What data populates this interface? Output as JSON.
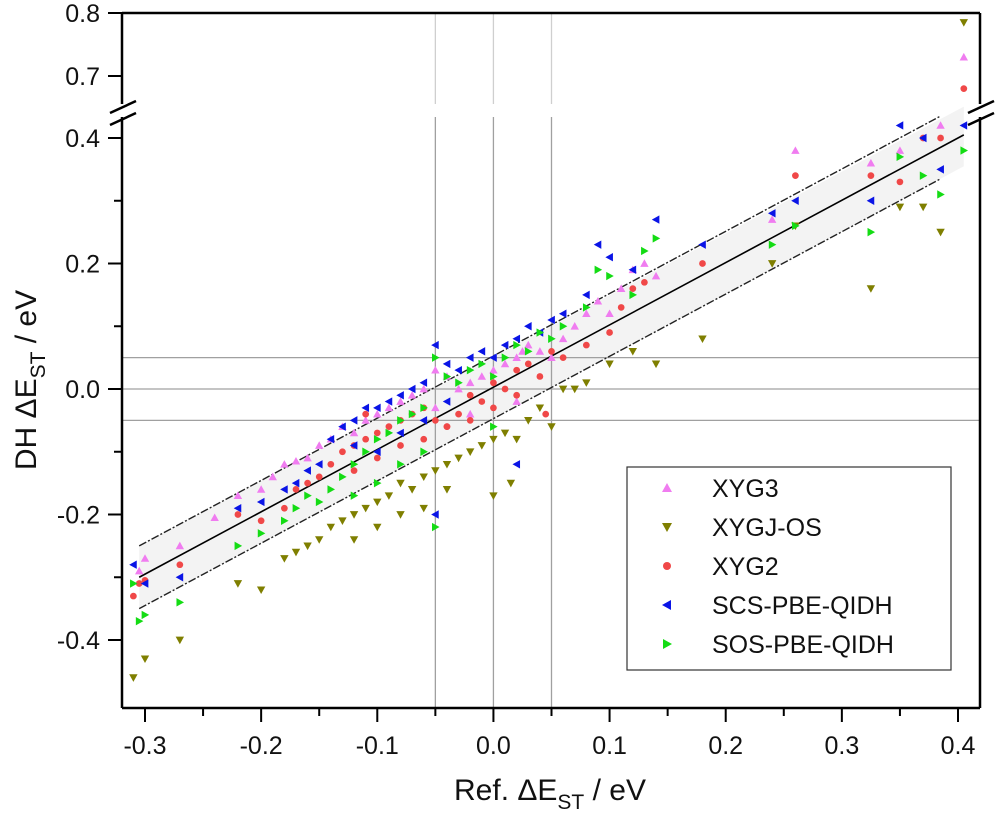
{
  "chart_data": {
    "type": "scatter",
    "title": "",
    "xlabel": {
      "main": "Ref. ΔE",
      "sub": "ST",
      "unit": " / eV"
    },
    "ylabel": {
      "main": "DH ΔE",
      "sub": "ST",
      "unit": " / eV"
    },
    "xlim": [
      -0.323,
      0.415
    ],
    "ylim_lower": [
      -0.475,
      0.44
    ],
    "ylim_upper": [
      0.685,
      0.8
    ],
    "axis_break": {
      "below": 0.44,
      "above": 0.685
    },
    "xticks": [
      -0.3,
      -0.2,
      -0.1,
      0.0,
      0.1,
      0.2,
      0.3,
      0.4
    ],
    "xtick_labels": [
      "-0.3",
      "-0.2",
      "-0.1",
      "0.0",
      "0.1",
      "0.2",
      "0.3",
      "0.4"
    ],
    "yticks": [
      -0.4,
      -0.2,
      0.0,
      0.2,
      0.4,
      0.7,
      0.8
    ],
    "ytick_labels": [
      "-0.4",
      "-0.2",
      "0.0",
      "0.2",
      "0.4",
      "0.7",
      "0.8"
    ],
    "ref_lines": {
      "vertical": [
        -0.05,
        0.0,
        0.05
      ],
      "horizontal": [
        -0.05,
        0.0,
        0.05
      ]
    },
    "fit_line": {
      "x": [
        -0.305,
        0.405
      ],
      "y": [
        -0.3,
        0.405
      ]
    },
    "band_offset": 0.05,
    "legend_position": "lower-right",
    "series": [
      {
        "name": "XYG3",
        "marker": "triangle-up",
        "color": "#f07cf0",
        "points": [
          [
            -0.305,
            -0.29
          ],
          [
            -0.3,
            -0.27
          ],
          [
            -0.27,
            -0.25
          ],
          [
            -0.24,
            -0.205
          ],
          [
            -0.22,
            -0.17
          ],
          [
            -0.2,
            -0.16
          ],
          [
            -0.19,
            -0.14
          ],
          [
            -0.18,
            -0.12
          ],
          [
            -0.17,
            -0.115
          ],
          [
            -0.16,
            -0.11
          ],
          [
            -0.15,
            -0.09
          ],
          [
            -0.14,
            -0.08
          ],
          [
            -0.13,
            -0.06
          ],
          [
            -0.12,
            -0.07
          ],
          [
            -0.11,
            -0.05
          ],
          [
            -0.1,
            -0.04
          ],
          [
            -0.09,
            -0.03
          ],
          [
            -0.08,
            -0.02
          ],
          [
            -0.07,
            -0.01
          ],
          [
            -0.06,
            0.0
          ],
          [
            -0.05,
            0.03
          ],
          [
            -0.04,
            0.02
          ],
          [
            -0.03,
            0.0
          ],
          [
            -0.02,
            0.01
          ],
          [
            -0.01,
            0.02
          ],
          [
            0.0,
            0.03
          ],
          [
            0.01,
            0.04
          ],
          [
            0.02,
            0.05
          ],
          [
            0.025,
            0.06
          ],
          [
            0.03,
            0.07
          ],
          [
            0.04,
            0.06
          ],
          [
            0.05,
            0.05
          ],
          [
            0.06,
            0.08
          ],
          [
            0.07,
            0.1
          ],
          [
            0.08,
            0.12
          ],
          [
            0.09,
            0.14
          ],
          [
            0.1,
            0.12
          ],
          [
            0.11,
            0.16
          ],
          [
            0.12,
            0.19
          ],
          [
            0.13,
            0.2
          ],
          [
            0.14,
            0.18
          ],
          [
            0.24,
            0.27
          ],
          [
            0.26,
            0.38
          ],
          [
            0.325,
            0.36
          ],
          [
            0.35,
            0.38
          ],
          [
            0.385,
            0.42
          ],
          [
            0.405,
            0.73
          ],
          [
            -0.05,
            -0.03
          ],
          [
            -0.02,
            -0.04
          ],
          [
            0.02,
            -0.02
          ]
        ]
      },
      {
        "name": "XYGJ-OS",
        "marker": "triangle-down",
        "color": "#7f7f00",
        "points": [
          [
            -0.31,
            -0.46
          ],
          [
            -0.3,
            -0.43
          ],
          [
            -0.27,
            -0.4
          ],
          [
            -0.22,
            -0.31
          ],
          [
            -0.2,
            -0.32
          ],
          [
            -0.18,
            -0.27
          ],
          [
            -0.17,
            -0.26
          ],
          [
            -0.16,
            -0.25
          ],
          [
            -0.15,
            -0.24
          ],
          [
            -0.14,
            -0.22
          ],
          [
            -0.13,
            -0.21
          ],
          [
            -0.12,
            -0.2
          ],
          [
            -0.11,
            -0.19
          ],
          [
            -0.1,
            -0.18
          ],
          [
            -0.09,
            -0.17
          ],
          [
            -0.08,
            -0.15
          ],
          [
            -0.07,
            -0.16
          ],
          [
            -0.06,
            -0.14
          ],
          [
            -0.05,
            -0.13
          ],
          [
            -0.04,
            -0.12
          ],
          [
            -0.03,
            -0.11
          ],
          [
            -0.02,
            -0.1
          ],
          [
            -0.01,
            -0.09
          ],
          [
            0.0,
            -0.08
          ],
          [
            0.01,
            -0.07
          ],
          [
            0.02,
            -0.08
          ],
          [
            0.03,
            -0.05
          ],
          [
            0.04,
            -0.03
          ],
          [
            0.05,
            -0.06
          ],
          [
            0.06,
            0.0
          ],
          [
            0.07,
            0.0
          ],
          [
            0.08,
            0.01
          ],
          [
            0.1,
            0.04
          ],
          [
            0.12,
            0.06
          ],
          [
            0.14,
            0.04
          ],
          [
            0.18,
            0.08
          ],
          [
            0.24,
            0.2
          ],
          [
            0.26,
            0.26
          ],
          [
            0.325,
            0.16
          ],
          [
            0.35,
            0.29
          ],
          [
            0.37,
            0.29
          ],
          [
            0.385,
            0.25
          ],
          [
            0.405,
            0.785
          ],
          [
            -0.12,
            -0.24
          ],
          [
            -0.1,
            -0.22
          ],
          [
            -0.08,
            -0.2
          ],
          [
            -0.06,
            -0.19
          ],
          [
            -0.04,
            -0.16
          ],
          [
            0.0,
            -0.17
          ],
          [
            0.015,
            -0.15
          ]
        ]
      },
      {
        "name": "XYG2",
        "marker": "circle",
        "color": "#f04848",
        "points": [
          [
            -0.31,
            -0.33
          ],
          [
            -0.305,
            -0.31
          ],
          [
            -0.3,
            -0.305
          ],
          [
            -0.27,
            -0.28
          ],
          [
            -0.22,
            -0.2
          ],
          [
            -0.2,
            -0.21
          ],
          [
            -0.18,
            -0.19
          ],
          [
            -0.17,
            -0.16
          ],
          [
            -0.16,
            -0.15
          ],
          [
            -0.15,
            -0.14
          ],
          [
            -0.14,
            -0.12
          ],
          [
            -0.13,
            -0.1
          ],
          [
            -0.12,
            -0.09
          ],
          [
            -0.11,
            -0.08
          ],
          [
            -0.1,
            -0.07
          ],
          [
            -0.09,
            -0.06
          ],
          [
            -0.08,
            -0.05
          ],
          [
            -0.07,
            -0.04
          ],
          [
            -0.06,
            -0.03
          ],
          [
            -0.05,
            -0.05
          ],
          [
            -0.04,
            -0.06
          ],
          [
            -0.03,
            -0.04
          ],
          [
            -0.02,
            -0.01
          ],
          [
            -0.01,
            -0.02
          ],
          [
            0.0,
            0.01
          ],
          [
            0.01,
            0.0
          ],
          [
            0.02,
            0.03
          ],
          [
            0.03,
            0.04
          ],
          [
            0.04,
            0.02
          ],
          [
            0.05,
            0.06
          ],
          [
            0.06,
            0.05
          ],
          [
            0.08,
            0.07
          ],
          [
            0.1,
            0.09
          ],
          [
            0.11,
            0.13
          ],
          [
            0.12,
            0.16
          ],
          [
            0.13,
            0.17
          ],
          [
            0.18,
            0.2
          ],
          [
            0.26,
            0.34
          ],
          [
            0.325,
            0.34
          ],
          [
            0.35,
            0.33
          ],
          [
            0.37,
            0.4
          ],
          [
            0.385,
            0.4
          ],
          [
            0.405,
            0.68
          ],
          [
            -0.12,
            -0.13
          ],
          [
            -0.1,
            -0.11
          ],
          [
            -0.08,
            -0.09
          ],
          [
            -0.06,
            -0.08
          ],
          [
            -0.04,
            -0.06
          ],
          [
            -0.02,
            -0.05
          ],
          [
            0.0,
            -0.03
          ],
          [
            0.02,
            -0.01
          ],
          [
            0.045,
            -0.04
          ],
          [
            -0.11,
            -0.04
          ]
        ]
      },
      {
        "name": "SCS-PBE-QIDH",
        "marker": "triangle-left",
        "color": "#0a14e6",
        "points": [
          [
            -0.31,
            -0.28
          ],
          [
            -0.3,
            -0.31
          ],
          [
            -0.27,
            -0.3
          ],
          [
            -0.22,
            -0.19
          ],
          [
            -0.2,
            -0.18
          ],
          [
            -0.18,
            -0.16
          ],
          [
            -0.17,
            -0.15
          ],
          [
            -0.16,
            -0.13
          ],
          [
            -0.15,
            -0.12
          ],
          [
            -0.14,
            -0.08
          ],
          [
            -0.13,
            -0.06
          ],
          [
            -0.12,
            -0.05
          ],
          [
            -0.11,
            -0.03
          ],
          [
            -0.1,
            -0.03
          ],
          [
            -0.09,
            -0.02
          ],
          [
            -0.08,
            -0.01
          ],
          [
            -0.07,
            0.0
          ],
          [
            -0.06,
            0.01
          ],
          [
            -0.05,
            0.07
          ],
          [
            -0.04,
            0.04
          ],
          [
            -0.03,
            0.03
          ],
          [
            -0.02,
            0.05
          ],
          [
            -0.01,
            0.06
          ],
          [
            0.0,
            0.05
          ],
          [
            0.01,
            0.07
          ],
          [
            0.02,
            0.08
          ],
          [
            0.03,
            0.1
          ],
          [
            0.04,
            0.09
          ],
          [
            0.05,
            0.11
          ],
          [
            0.06,
            0.12
          ],
          [
            0.08,
            0.15
          ],
          [
            0.09,
            0.23
          ],
          [
            0.1,
            0.21
          ],
          [
            0.12,
            0.19
          ],
          [
            0.14,
            0.27
          ],
          [
            0.18,
            0.23
          ],
          [
            0.24,
            0.28
          ],
          [
            0.26,
            0.3
          ],
          [
            0.325,
            0.3
          ],
          [
            0.35,
            0.42
          ],
          [
            0.37,
            0.4
          ],
          [
            0.385,
            0.35
          ],
          [
            0.405,
            0.42
          ],
          [
            -0.12,
            -0.09
          ],
          [
            -0.1,
            -0.1
          ],
          [
            -0.08,
            -0.07
          ],
          [
            -0.06,
            -0.05
          ],
          [
            -0.04,
            -0.02
          ],
          [
            -0.05,
            -0.2
          ],
          [
            0.02,
            -0.12
          ]
        ]
      },
      {
        "name": "SOS-PBE-QIDH",
        "marker": "triangle-right",
        "color": "#14dc14",
        "points": [
          [
            -0.31,
            -0.31
          ],
          [
            -0.305,
            -0.37
          ],
          [
            -0.3,
            -0.36
          ],
          [
            -0.27,
            -0.34
          ],
          [
            -0.22,
            -0.25
          ],
          [
            -0.2,
            -0.23
          ],
          [
            -0.18,
            -0.21
          ],
          [
            -0.17,
            -0.19
          ],
          [
            -0.16,
            -0.17
          ],
          [
            -0.15,
            -0.18
          ],
          [
            -0.14,
            -0.16
          ],
          [
            -0.13,
            -0.14
          ],
          [
            -0.12,
            -0.12
          ],
          [
            -0.11,
            -0.1
          ],
          [
            -0.1,
            -0.08
          ],
          [
            -0.09,
            -0.07
          ],
          [
            -0.08,
            -0.05
          ],
          [
            -0.07,
            -0.04
          ],
          [
            -0.06,
            -0.03
          ],
          [
            -0.05,
            0.05
          ],
          [
            -0.04,
            0.02
          ],
          [
            -0.03,
            0.01
          ],
          [
            -0.02,
            0.03
          ],
          [
            -0.01,
            0.04
          ],
          [
            0.0,
            0.02
          ],
          [
            0.01,
            0.05
          ],
          [
            0.02,
            0.07
          ],
          [
            0.03,
            0.06
          ],
          [
            0.04,
            0.09
          ],
          [
            0.05,
            0.08
          ],
          [
            0.06,
            0.1
          ],
          [
            0.08,
            0.13
          ],
          [
            0.09,
            0.19
          ],
          [
            0.1,
            0.18
          ],
          [
            0.12,
            0.15
          ],
          [
            0.13,
            0.22
          ],
          [
            0.14,
            0.24
          ],
          [
            0.24,
            0.23
          ],
          [
            0.26,
            0.26
          ],
          [
            0.325,
            0.25
          ],
          [
            0.35,
            0.37
          ],
          [
            0.37,
            0.34
          ],
          [
            0.385,
            0.31
          ],
          [
            0.405,
            0.38
          ],
          [
            -0.12,
            -0.17
          ],
          [
            -0.1,
            -0.15
          ],
          [
            -0.08,
            -0.12
          ],
          [
            -0.06,
            -0.1
          ],
          [
            -0.05,
            -0.22
          ],
          [
            0.0,
            -0.06
          ]
        ]
      }
    ]
  }
}
